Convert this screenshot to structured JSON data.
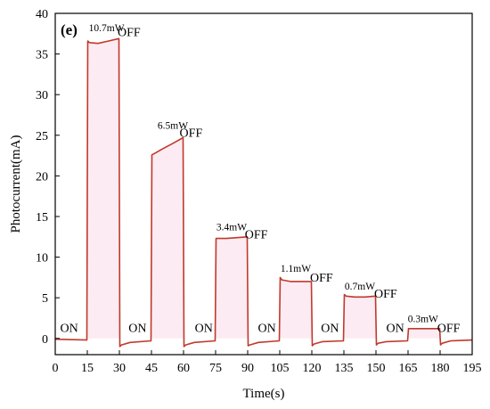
{
  "chart_data": {
    "type": "line",
    "panel_label": "(e)",
    "xlabel": "Time(s)",
    "ylabel": "Photocurrent(mA)",
    "xlim": [
      0,
      195
    ],
    "ylim": [
      -2,
      40
    ],
    "xticks": [
      0,
      15,
      30,
      45,
      60,
      75,
      90,
      105,
      120,
      135,
      150,
      165,
      180,
      195
    ],
    "yticks": [
      0,
      5,
      10,
      15,
      20,
      25,
      30,
      35,
      40
    ],
    "line_color": "#c0392b",
    "shade_color": "#f7c6dd",
    "series": [
      {
        "x": [
          0,
          14.8,
          15.2,
          16,
          20,
          25,
          29.8,
          30.2,
          31,
          35,
          44.8,
          45.2,
          46,
          50,
          55,
          59.8,
          60.2,
          61,
          65,
          74.8,
          75.2,
          76,
          80,
          85,
          89.8,
          90.2,
          91,
          95,
          104.8,
          105.2,
          106,
          110,
          115,
          119.8,
          120.2,
          121,
          125,
          134.8,
          135.2,
          136,
          140,
          145,
          149.8,
          150.2,
          151,
          155,
          164.8,
          165.2,
          166,
          170,
          175,
          179.8,
          180.2,
          181,
          185,
          195
        ],
        "y": [
          -0.1,
          -0.2,
          36.6,
          36.4,
          36.3,
          36.6,
          36.9,
          -1.0,
          -0.8,
          -0.5,
          -0.3,
          22.6,
          22.7,
          23.3,
          24.0,
          24.7,
          -1.0,
          -0.8,
          -0.5,
          -0.3,
          12.3,
          12.3,
          12.3,
          12.4,
          12.5,
          -0.9,
          -0.8,
          -0.5,
          -0.3,
          7.5,
          7.2,
          7.0,
          7.0,
          7.0,
          -0.9,
          -0.7,
          -0.4,
          -0.3,
          5.4,
          5.2,
          5.1,
          5.1,
          5.2,
          -0.8,
          -0.6,
          -0.4,
          -0.3,
          1.2,
          1.2,
          1.2,
          1.2,
          1.2,
          -0.8,
          -0.6,
          -0.3,
          -0.2
        ]
      }
    ],
    "annotations": [
      {
        "text": "ON",
        "x": 6.5,
        "y": 0.8,
        "size": "big"
      },
      {
        "text": "10.7mW",
        "x": 24,
        "y": 37.8,
        "size": "small"
      },
      {
        "text": "OFF",
        "x": 34.5,
        "y": 37.2,
        "size": "big"
      },
      {
        "text": "ON",
        "x": 38.5,
        "y": 0.8,
        "size": "big"
      },
      {
        "text": "6.5mW",
        "x": 55,
        "y": 25.8,
        "size": "small"
      },
      {
        "text": "OFF",
        "x": 63.5,
        "y": 24.8,
        "size": "big"
      },
      {
        "text": "ON",
        "x": 69.5,
        "y": 0.8,
        "size": "big"
      },
      {
        "text": "3.4mW",
        "x": 82.5,
        "y": 13.3,
        "size": "small"
      },
      {
        "text": "OFF",
        "x": 94,
        "y": 12.3,
        "size": "big"
      },
      {
        "text": "ON",
        "x": 99,
        "y": 0.8,
        "size": "big"
      },
      {
        "text": "1.1mW",
        "x": 112.5,
        "y": 8.2,
        "size": "small"
      },
      {
        "text": "OFF",
        "x": 124.5,
        "y": 7.0,
        "size": "big"
      },
      {
        "text": "ON",
        "x": 128.5,
        "y": 0.8,
        "size": "big"
      },
      {
        "text": "0.7mW",
        "x": 142.5,
        "y": 6.0,
        "size": "small"
      },
      {
        "text": "OFF",
        "x": 154.5,
        "y": 5.0,
        "size": "big"
      },
      {
        "text": "ON",
        "x": 159,
        "y": 0.8,
        "size": "big"
      },
      {
        "text": "0.3mW",
        "x": 172,
        "y": 2.0,
        "size": "small"
      },
      {
        "text": "OFF",
        "x": 184,
        "y": 0.8,
        "size": "big"
      }
    ]
  }
}
